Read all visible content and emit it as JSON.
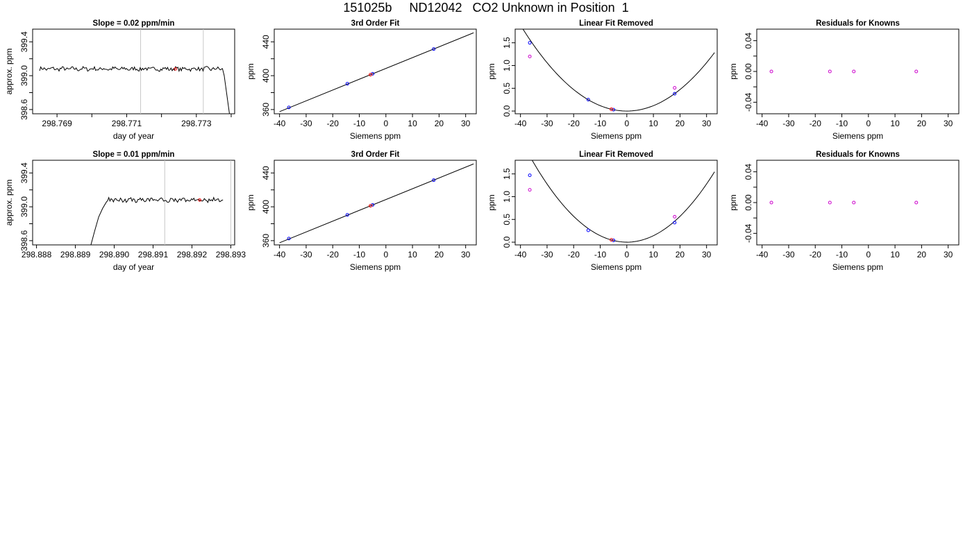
{
  "page_title": "151025b     ND12042   CO2 Unknown in Position  1",
  "colors": {
    "known": "#0000ff",
    "unknown": "#ff0000",
    "mixed": "#cc00cc",
    "line": "#000000",
    "vline": "#c8c8c8"
  },
  "chart_data": [
    {
      "type": "line",
      "row": 0,
      "col": 0,
      "title": "Slope =  0.02  ppm/min",
      "xlabel": "day of year",
      "ylabel": "approx. ppm",
      "xlim": [
        298.7683,
        298.7741
      ],
      "ylim": [
        398.55,
        399.55
      ],
      "xticks": [
        298.768,
        298.769,
        298.77,
        298.771,
        298.772,
        298.773,
        298.774
      ],
      "xticklabels": [
        "",
        "298.769",
        "",
        "298.771",
        "",
        "298.773",
        ""
      ],
      "yticks": [
        398.6,
        398.8,
        399.0,
        399.2,
        399.4
      ],
      "yticklabels": [
        "398.6",
        "",
        "399.0",
        "",
        "399.4"
      ],
      "vlines": [
        298.7714,
        298.7732
      ],
      "trace": {
        "x_start": 298.7685,
        "x_end": 298.77375,
        "level": 399.08,
        "points": 160,
        "tail": [
          [
            298.7738,
            399.0
          ],
          [
            298.77395,
            398.55
          ]
        ]
      },
      "marker": [
        298.7724,
        399.08
      ]
    },
    {
      "type": "scatter",
      "row": 0,
      "col": 1,
      "title": "3rd Order Fit",
      "xlabel": "Siemens ppm",
      "ylabel": "ppm",
      "xlim": [
        -42,
        34
      ],
      "ylim": [
        355,
        455
      ],
      "xticks": [
        -40,
        -30,
        -20,
        -10,
        0,
        10,
        20,
        30
      ],
      "xticklabels": [
        "-40",
        "-30",
        "-20",
        "-10",
        "0",
        "10",
        "20",
        "30"
      ],
      "yticks": [
        360,
        380,
        400,
        420,
        440
      ],
      "yticklabels": [
        "360",
        "",
        "400",
        "",
        "440"
      ],
      "fit_line": [
        [
          -40,
          357.5
        ],
        [
          33,
          450.7
        ]
      ],
      "points_known": [
        [
          -36.5,
          362.5
        ],
        [
          -14.5,
          390.5
        ],
        [
          -5,
          402.2
        ],
        [
          18,
          431.5
        ]
      ],
      "points_unknown": [
        [
          -5.8,
          401.2
        ]
      ]
    },
    {
      "type": "scatter",
      "row": 0,
      "col": 2,
      "title": "Linear Fit Removed",
      "xlabel": "Siemens ppm",
      "ylabel": "ppm",
      "xlim": [
        -42,
        34
      ],
      "ylim": [
        -0.06,
        1.8
      ],
      "xticks": [
        -40,
        -30,
        -20,
        -10,
        0,
        10,
        20,
        30
      ],
      "xticklabels": [
        "-40",
        "-30",
        "-20",
        "-10",
        "0",
        "10",
        "20",
        "30"
      ],
      "yticks": [
        0.0,
        0.5,
        1.0,
        1.5
      ],
      "yticklabels": [
        "0.0",
        "0.5",
        "1.0",
        "1.5"
      ],
      "curve": {
        "coef": 0.00118,
        "x_from": -40,
        "x_to": 33
      },
      "points_known": [
        [
          -36.5,
          1.5
        ],
        [
          -14.5,
          0.25
        ],
        [
          -5,
          0.03
        ],
        [
          18,
          0.38
        ]
      ],
      "points_unknown": [
        [
          -5.8,
          0.04
        ]
      ],
      "points_other": [
        [
          -36.5,
          1.2
        ],
        [
          18,
          0.51
        ]
      ]
    },
    {
      "type": "scatter",
      "row": 0,
      "col": 3,
      "title": "Residuals for Knowns",
      "xlabel": "Siemens ppm",
      "ylabel": "ppm",
      "xlim": [
        -42,
        34
      ],
      "ylim": [
        -0.055,
        0.055
      ],
      "xticks": [
        -40,
        -30,
        -20,
        -10,
        0,
        10,
        20,
        30
      ],
      "xticklabels": [
        "-40",
        "-30",
        "-20",
        "-10",
        "0",
        "10",
        "20",
        "30"
      ],
      "yticks": [
        -0.04,
        -0.02,
        0.0,
        0.02,
        0.04
      ],
      "yticklabels": [
        "-0.04",
        "",
        "0.00",
        "",
        "0.04"
      ],
      "points_mixed": [
        [
          -36.5,
          0
        ],
        [
          -14.5,
          0
        ],
        [
          -5.5,
          0
        ],
        [
          18,
          0
        ]
      ]
    },
    {
      "type": "line",
      "row": 1,
      "col": 0,
      "title": "Slope =  0.01  ppm/min",
      "xlabel": "day of year",
      "ylabel": "approx. ppm",
      "xlim": [
        298.8879,
        298.8931
      ],
      "ylim": [
        398.55,
        399.55
      ],
      "xticks": [
        298.888,
        298.889,
        298.89,
        298.891,
        298.892,
        298.893
      ],
      "xticklabels": [
        "298.888",
        "298.889",
        "298.890",
        "298.891",
        "298.892",
        "298.893"
      ],
      "yticks": [
        398.6,
        398.8,
        399.0,
        399.2,
        399.4
      ],
      "yticklabels": [
        "398.6",
        "",
        "399.0",
        "",
        "399.4"
      ],
      "vlines": [
        298.8913,
        298.893
      ],
      "trace": {
        "x_start": 298.8898,
        "x_end": 298.8928,
        "level": 399.08,
        "points": 100,
        "head": [
          [
            298.8894,
            398.55
          ],
          [
            298.8895,
            398.72
          ],
          [
            298.8896,
            398.88
          ],
          [
            298.8897,
            398.98
          ]
        ]
      },
      "marker": [
        298.8922,
        399.08
      ]
    },
    {
      "type": "scatter",
      "row": 1,
      "col": 1,
      "title": "3rd Order Fit",
      "xlabel": "Siemens ppm",
      "ylabel": "ppm",
      "xlim": [
        -42,
        34
      ],
      "ylim": [
        355,
        455
      ],
      "xticks": [
        -40,
        -30,
        -20,
        -10,
        0,
        10,
        20,
        30
      ],
      "xticklabels": [
        "-40",
        "-30",
        "-20",
        "-10",
        "0",
        "10",
        "20",
        "30"
      ],
      "yticks": [
        360,
        380,
        400,
        420,
        440
      ],
      "yticklabels": [
        "360",
        "",
        "400",
        "",
        "440"
      ],
      "fit_line": [
        [
          -40,
          357.5
        ],
        [
          33,
          450.7
        ]
      ],
      "points_known": [
        [
          -36.5,
          362.5
        ],
        [
          -14.5,
          390.5
        ],
        [
          -5,
          402.2
        ],
        [
          18,
          431.5
        ]
      ],
      "points_unknown": [
        [
          -5.8,
          401.2
        ]
      ]
    },
    {
      "type": "scatter",
      "row": 1,
      "col": 2,
      "title": "Linear Fit Removed",
      "xlabel": "Siemens ppm",
      "ylabel": "ppm",
      "xlim": [
        -42,
        34
      ],
      "ylim": [
        -0.06,
        1.8
      ],
      "xticks": [
        -40,
        -30,
        -20,
        -10,
        0,
        10,
        20,
        30
      ],
      "xticklabels": [
        "-40",
        "-30",
        "-20",
        "-10",
        "0",
        "10",
        "20",
        "30"
      ],
      "yticks": [
        0.0,
        0.5,
        1.0,
        1.5
      ],
      "yticklabels": [
        "0.0",
        "0.5",
        "1.0",
        "1.5"
      ],
      "curve": {
        "coef": 0.00142,
        "x_from": -40,
        "x_to": 33
      },
      "points_known": [
        [
          -36.5,
          1.47
        ],
        [
          -14.5,
          0.26
        ],
        [
          -5,
          0.04
        ],
        [
          18,
          0.43
        ]
      ],
      "points_unknown": [
        [
          -5.8,
          0.05
        ]
      ],
      "points_other": [
        [
          -36.5,
          1.15
        ],
        [
          18,
          0.56
        ]
      ]
    },
    {
      "type": "scatter",
      "row": 1,
      "col": 3,
      "title": "Residuals for Knowns",
      "xlabel": "Siemens ppm",
      "ylabel": "ppm",
      "xlim": [
        -42,
        34
      ],
      "ylim": [
        -0.055,
        0.055
      ],
      "xticks": [
        -40,
        -30,
        -20,
        -10,
        0,
        10,
        20,
        30
      ],
      "xticklabels": [
        "-40",
        "-30",
        "-20",
        "-10",
        "0",
        "10",
        "20",
        "30"
      ],
      "yticks": [
        -0.04,
        -0.02,
        0.0,
        0.02,
        0.04
      ],
      "yticklabels": [
        "-0.04",
        "",
        "0.00",
        "",
        "0.04"
      ],
      "points_mixed": [
        [
          -36.5,
          0
        ],
        [
          -14.5,
          0
        ],
        [
          -5.5,
          0
        ],
        [
          18,
          0
        ]
      ]
    }
  ]
}
